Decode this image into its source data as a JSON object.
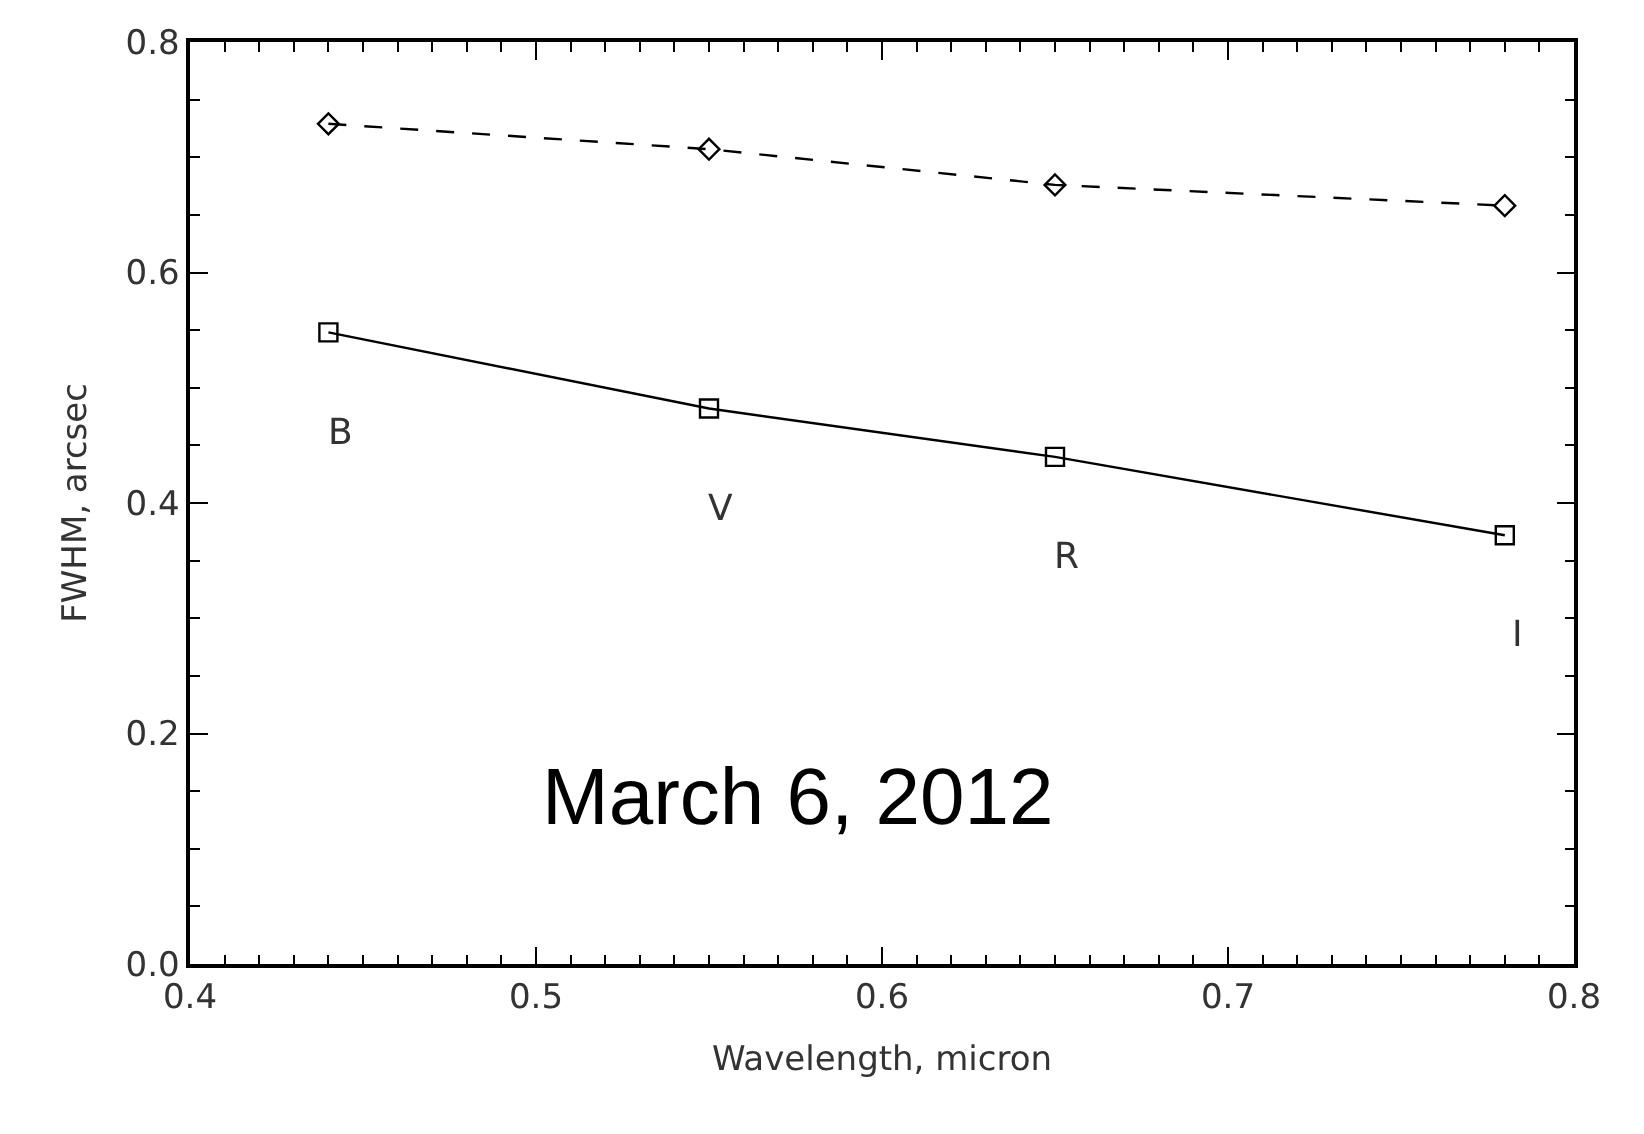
{
  "chart_data": {
    "type": "line",
    "xlabel": "Wavelength, micron",
    "ylabel": "FWHM, arcsec",
    "x": [
      0.44,
      0.55,
      0.65,
      0.78
    ],
    "series": [
      {
        "color": "#000000",
        "values": [
          0.729,
          0.707,
          0.676,
          0.658
        ],
        "marker": "diamond",
        "line_style": "dashed"
      },
      {
        "color": "#000000",
        "values": [
          0.548,
          0.482,
          0.44,
          0.372
        ],
        "marker": "square",
        "line_style": "solid"
      }
    ],
    "xlim": [
      0.4,
      0.8
    ],
    "xticks": [
      0.4,
      0.5,
      0.6,
      0.7,
      0.8
    ],
    "ylim": [
      0.0,
      0.8
    ],
    "yticks": [
      {
        "value": 0.0,
        "label": "0.0"
      },
      0.2,
      0.4,
      0.6,
      0.8
    ],
    "annotations": [
      "B",
      "V",
      "R",
      "I",
      "March 6, 2012"
    ]
  }
}
